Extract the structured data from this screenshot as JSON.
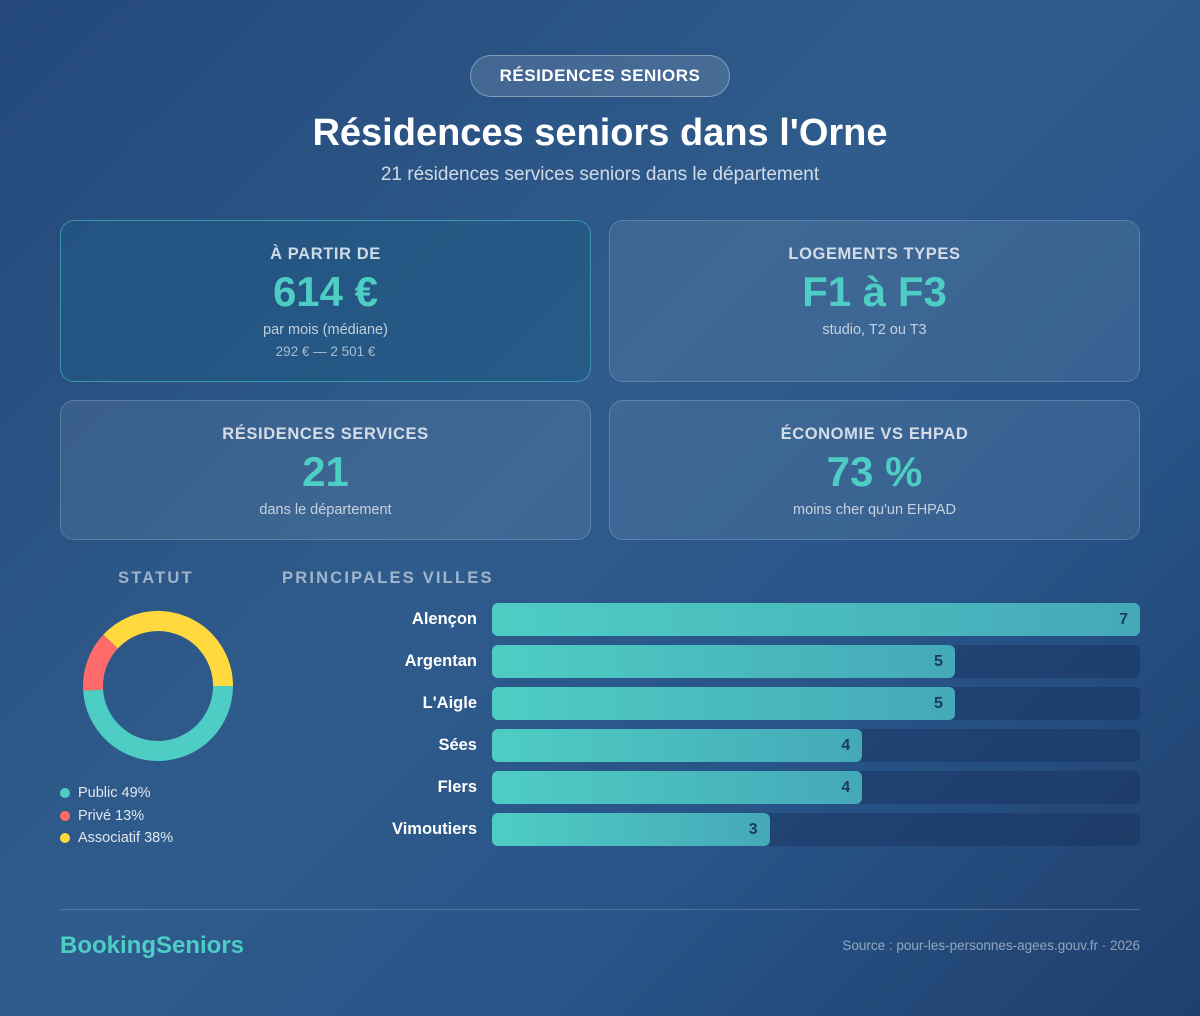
{
  "header": {
    "badge": "RÉSIDENCES SENIORS",
    "title": "Résidences seniors dans l'Orne",
    "subtitle": "21 résidences services seniors dans le département"
  },
  "stats": [
    {
      "label": "À PARTIR DE",
      "value": "614 €",
      "desc": "par mois (médiane)",
      "range": "292 € — 2 501 €"
    },
    {
      "label": "LOGEMENTS TYPES",
      "value": "F1 à F3",
      "desc": "studio, T2 ou T3"
    },
    {
      "label": "RÉSIDENCES SERVICES",
      "value": "21",
      "desc": "dans le département"
    },
    {
      "label": "ÉCONOMIE VS EHPAD",
      "value": "73 %",
      "desc": "moins cher qu'un EHPAD"
    }
  ],
  "sections": {
    "statut": "STATUT",
    "villes": "PRINCIPALES VILLES"
  },
  "chart_data": [
    {
      "type": "pie",
      "title": "STATUT",
      "categories": [
        "Public",
        "Privé",
        "Associatif"
      ],
      "values": [
        49,
        13,
        38
      ],
      "labels": [
        "Public 49%",
        "Privé 13%",
        "Associatif 38%"
      ],
      "colors": [
        "#4ecdc4",
        "#ff6b6b",
        "#ffd93d"
      ]
    },
    {
      "type": "bar",
      "title": "PRINCIPALES VILLES",
      "categories": [
        "Alençon",
        "Argentan",
        "L'Aigle",
        "Sées",
        "Flers",
        "Vimoutiers"
      ],
      "values": [
        7,
        5,
        5,
        4,
        4,
        3
      ],
      "xlim": [
        0,
        7
      ]
    }
  ],
  "footer": {
    "brand": "BookingSeniors",
    "source": "Source : pour-les-personnes-agees.gouv.fr · 2026"
  }
}
